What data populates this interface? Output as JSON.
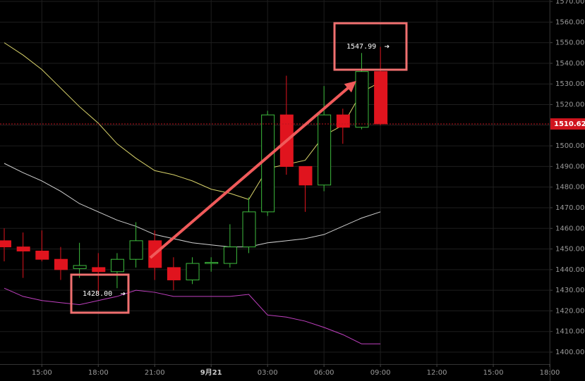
{
  "chart_data": {
    "type": "candlestick",
    "x": [
      13,
      14,
      15,
      16,
      17,
      18,
      19,
      20,
      21,
      22,
      23,
      24,
      25,
      26,
      27,
      28,
      29,
      30,
      31,
      32,
      33
    ],
    "candles": {
      "open": [
        1454,
        1451,
        1449,
        1445,
        1440.5,
        1441,
        1439,
        1445,
        1454,
        1441,
        1435,
        1443,
        1443,
        1451,
        1468,
        1515,
        1490,
        1481,
        1515,
        1509,
        1536
      ],
      "high": [
        1460,
        1458,
        1459,
        1451,
        1453,
        1448,
        1448,
        1463,
        1459,
        1446,
        1446,
        1446,
        1462,
        1475,
        1517,
        1534,
        1490,
        1529,
        1518,
        1545,
        1547.99
      ],
      "low": [
        1444,
        1436,
        1444,
        1435,
        1436,
        1428,
        1431,
        1441,
        1435,
        1430,
        1433,
        1439,
        1441,
        1448,
        1466,
        1486,
        1468,
        1478,
        1501,
        1508,
        1510
      ],
      "close": [
        1451,
        1449,
        1445,
        1440,
        1442,
        1439,
        1445,
        1454,
        1441,
        1435,
        1443,
        1443.5,
        1451,
        1468,
        1515,
        1490,
        1481,
        1515,
        1509,
        1536,
        1510.62
      ]
    },
    "up_color": "#3dbb3d",
    "down_color": "#e0141e",
    "lines": [
      {
        "color": "#d8d26a",
        "values": [
          1550,
          1544,
          1537,
          1528,
          1519,
          1511,
          1501,
          1494,
          1488,
          1486,
          1483,
          1479,
          1477,
          1474,
          1489,
          1491,
          1493,
          1505,
          1510,
          1526,
          1531
        ]
      },
      {
        "color": "#d0d0d0",
        "values": [
          1491.5,
          1487,
          1483,
          1478,
          1472,
          1468,
          1464,
          1461,
          1457,
          1455,
          1453,
          1452,
          1451,
          1451,
          1453,
          1454,
          1455,
          1457,
          1461,
          1465,
          1468
        ]
      },
      {
        "color": "#c040c0",
        "values": [
          1431,
          1427,
          1425,
          1424,
          1423,
          1425,
          1427,
          1430,
          1429,
          1427,
          1427,
          1427,
          1427,
          1428,
          1418,
          1417,
          1415,
          1412,
          1408.5,
          1404,
          1404
        ]
      }
    ],
    "xlim": [
      12.775,
      42
    ],
    "xticks": [
      {
        "value": 15,
        "label": "15:00"
      },
      {
        "value": 18,
        "label": "18:00"
      },
      {
        "value": 21,
        "label": "21:00"
      },
      {
        "value": 24,
        "label": "9月21"
      },
      {
        "value": 27,
        "label": "03:00"
      },
      {
        "value": 30,
        "label": "06:00"
      },
      {
        "value": 33,
        "label": "09:00"
      },
      {
        "value": 36,
        "label": "12:00"
      },
      {
        "value": 39,
        "label": "15:00"
      },
      {
        "value": 42,
        "label": "18:00"
      }
    ],
    "ylim": [
      1394.2,
      1570.7
    ],
    "yticks": [
      {
        "value": 1400,
        "label": "1400.00"
      },
      {
        "value": 1410,
        "label": "1410.00"
      },
      {
        "value": 1420,
        "label": "1420.00"
      },
      {
        "value": 1430,
        "label": "1430.00"
      },
      {
        "value": 1440,
        "label": "1440.00"
      },
      {
        "value": 1450,
        "label": "1450.00"
      },
      {
        "value": 1460,
        "label": "1460.00"
      },
      {
        "value": 1470,
        "label": "1470.00"
      },
      {
        "value": 1480,
        "label": "1480.00"
      },
      {
        "value": 1490,
        "label": "1490.00"
      },
      {
        "value": 1500,
        "label": "1500.00"
      },
      {
        "value": 1510,
        "label": "1510.00"
      },
      {
        "value": 1520,
        "label": "1520.00"
      },
      {
        "value": 1530,
        "label": "1530.00"
      },
      {
        "value": 1540,
        "label": "1540.00"
      },
      {
        "value": 1550,
        "label": "1550.00"
      },
      {
        "value": 1560,
        "label": "1560.00"
      },
      {
        "value": 1570,
        "label": "1570.00"
      }
    ],
    "grid": true,
    "last_price": 1510.62,
    "annotations": [
      {
        "value": 1547.99,
        "label": "1547.99"
      },
      {
        "value": 1428,
        "label": "1428.00"
      }
    ]
  }
}
